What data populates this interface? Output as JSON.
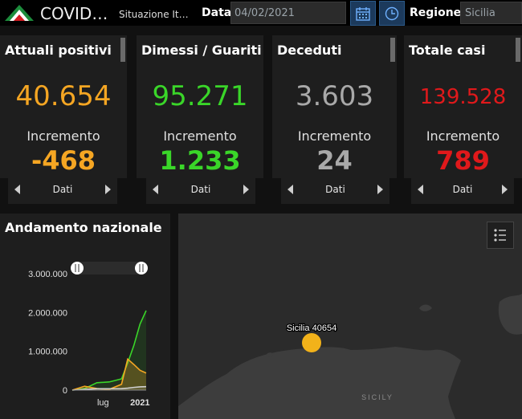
{
  "header": {
    "app_title": "COVID…",
    "subtitle": "Situazione It…",
    "date_label": "Data",
    "date_value": "04/02/2021",
    "region_label": "Regione",
    "region_value": "Sicilia",
    "calendar_icon": "calendar-icon",
    "clock_icon": "clock-icon"
  },
  "cards": [
    {
      "title": "Attuali positivi",
      "value": "40.654",
      "increment_label": "Incremento",
      "increment": "-468",
      "color": "#f5a623",
      "pager_label": "Dati"
    },
    {
      "title": "Dimessi / Guariti",
      "value": "95.271",
      "increment_label": "Incremento",
      "increment": "1.233",
      "color": "#3ad629",
      "pager_label": "Dati"
    },
    {
      "title": "Deceduti",
      "value": "3.603",
      "increment_label": "Incremento",
      "increment": "24",
      "color": "#a9a9a9",
      "pager_label": "Dati"
    },
    {
      "title": "Totale casi",
      "value": "139.528",
      "increment_label": "Incremento",
      "increment": "789",
      "color": "#e0191b",
      "pager_label": "Dati"
    }
  ],
  "chart": {
    "title": "Andamento nazionale"
  },
  "chart_data": {
    "type": "line",
    "title": "Andamento nazionale",
    "ylim": [
      0,
      3000000
    ],
    "y_ticks": [
      "3.000.000",
      "2.000.000",
      "1.000.000",
      "0"
    ],
    "x_ticks": [
      "lug",
      "2021"
    ],
    "x_range": [
      "2020-02",
      "2021-02"
    ],
    "series": [
      {
        "color": "#3ad629",
        "x": [
          "2020-02",
          "2020-04",
          "2020-06",
          "2020-08",
          "2020-10",
          "2020-11",
          "2020-12",
          "2021-01",
          "2021-02"
        ],
        "values": [
          0,
          40000,
          190000,
          210000,
          290000,
          700000,
          1150000,
          1700000,
          2050000
        ]
      },
      {
        "color": "#f5a623",
        "x": [
          "2020-02",
          "2020-04",
          "2020-06",
          "2020-08",
          "2020-10",
          "2020-11",
          "2020-12",
          "2021-01",
          "2021-02"
        ],
        "values": [
          0,
          100000,
          40000,
          20000,
          150000,
          800000,
          660000,
          510000,
          440000
        ]
      },
      {
        "color": "#cfcfcf",
        "x": [
          "2020-02",
          "2020-04",
          "2020-06",
          "2020-08",
          "2020-10",
          "2020-11",
          "2020-12",
          "2021-01",
          "2021-02"
        ],
        "values": [
          0,
          20000,
          35000,
          36000,
          38000,
          50000,
          70000,
          85000,
          90000
        ]
      }
    ]
  },
  "map": {
    "marker_label": "Sicilia 40654",
    "place_label": "SICILY",
    "marker_color": "#f2b21a",
    "legend_icon": "legend-icon"
  }
}
